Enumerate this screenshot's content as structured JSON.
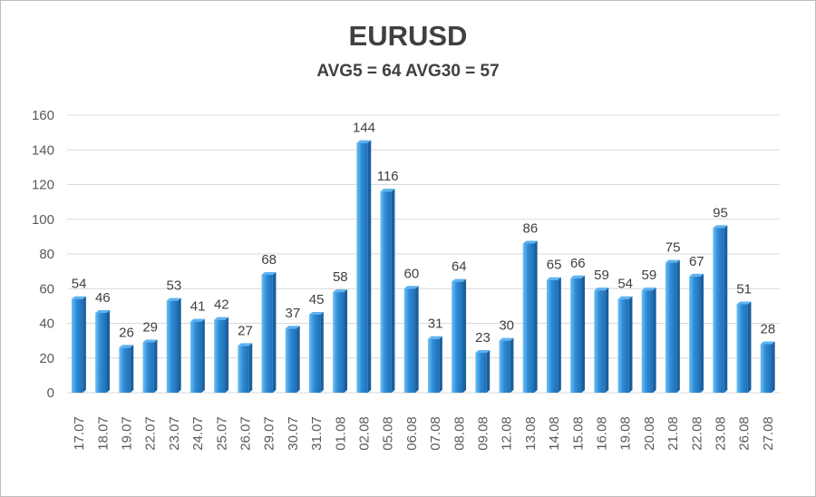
{
  "chart_data": {
    "type": "bar",
    "title": "EURUSD",
    "subtitle": "AVG5 = 64 AVG30 = 57",
    "categories": [
      "17.07",
      "18.07",
      "19.07",
      "22.07",
      "23.07",
      "24.07",
      "25.07",
      "26.07",
      "29.07",
      "30.07",
      "31.07",
      "01.08",
      "02.08",
      "05.08",
      "06.08",
      "07.08",
      "08.08",
      "09.08",
      "12.08",
      "13.08",
      "14.08",
      "15.08",
      "16.08",
      "19.08",
      "20.08",
      "21.08",
      "22.08",
      "23.08",
      "26.08",
      "27.08"
    ],
    "values": [
      54,
      46,
      26,
      29,
      53,
      41,
      42,
      27,
      68,
      37,
      45,
      58,
      144,
      116,
      60,
      31,
      64,
      23,
      30,
      86,
      65,
      66,
      59,
      54,
      59,
      75,
      67,
      95,
      51,
      28
    ],
    "ylim": [
      0,
      160
    ],
    "yticks": [
      0,
      20,
      40,
      60,
      80,
      100,
      120,
      140,
      160
    ],
    "grid": true,
    "data_labels": true,
    "bar_color": "#2e8bd6",
    "bar_color_light": "#5cb3f0",
    "bar_color_dark": "#1a5f9e"
  }
}
